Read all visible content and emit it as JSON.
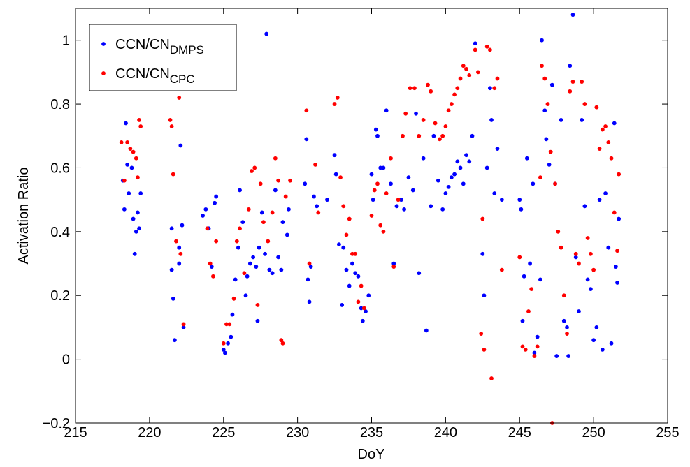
{
  "chart_data": {
    "type": "scatter",
    "x_label": "DoY",
    "y_label": "Activation Ratio",
    "xlim": [
      215,
      255
    ],
    "ylim": [
      -0.2,
      1.1
    ],
    "xticks": [
      215,
      220,
      225,
      230,
      235,
      240,
      245,
      250,
      255
    ],
    "yticks": [
      {
        "value": -0.2,
        "label": "−0.2"
      },
      0,
      0.2,
      0.4,
      0.6,
      0.8,
      1
    ],
    "grid": false,
    "legend": "upper left",
    "series": [
      {
        "name": "CCN/CN",
        "subscript": "DMPS",
        "color": "#0000ff",
        "x": [
          218.2,
          218.3,
          218.4,
          218.5,
          218.6,
          218.8,
          218.9,
          219.0,
          219.1,
          219.2,
          219.3,
          219.4,
          221.5,
          221.5,
          221.6,
          221.7,
          222.0,
          222.0,
          222.1,
          222.2,
          222.3,
          223.6,
          223.8,
          224.0,
          224.2,
          224.4,
          224.5,
          225.0,
          225.1,
          225.3,
          225.5,
          225.6,
          225.8,
          226.0,
          226.1,
          226.3,
          226.5,
          226.6,
          226.8,
          227.0,
          227.2,
          227.3,
          227.4,
          227.6,
          227.8,
          227.9,
          228.1,
          228.3,
          228.5,
          228.7,
          228.9,
          229.0,
          229.3,
          229.4,
          230.5,
          230.6,
          230.7,
          230.8,
          230.9,
          231.1,
          231.3,
          232.0,
          232.5,
          232.6,
          232.8,
          233.0,
          233.1,
          233.3,
          233.5,
          233.7,
          233.9,
          234.1,
          234.3,
          234.4,
          234.6,
          234.8,
          235.0,
          235.1,
          235.3,
          235.4,
          235.6,
          235.8,
          236.0,
          236.3,
          236.5,
          236.7,
          237.0,
          237.2,
          237.5,
          237.8,
          238.0,
          238.2,
          238.5,
          238.7,
          239.0,
          239.2,
          239.5,
          239.8,
          240.0,
          240.2,
          240.4,
          240.6,
          240.8,
          241.0,
          241.2,
          241.4,
          241.6,
          241.8,
          242.0,
          242.5,
          242.6,
          242.8,
          243.0,
          243.1,
          243.3,
          243.5,
          243.8,
          245.0,
          245.1,
          245.2,
          245.3,
          245.5,
          245.7,
          245.9,
          246.0,
          246.2,
          246.4,
          246.5,
          246.7,
          246.8,
          247.0,
          247.2,
          247.4,
          247.5,
          247.8,
          248.0,
          248.2,
          248.3,
          248.4,
          248.6,
          248.8,
          249.0,
          249.2,
          249.4,
          249.6,
          249.8,
          250.0,
          250.2,
          250.4,
          250.6,
          250.8,
          251.0,
          251.2,
          251.4,
          251.5,
          251.6,
          251.7
        ],
        "values": [
          0.56,
          0.47,
          0.74,
          0.61,
          0.52,
          0.6,
          0.44,
          0.33,
          0.4,
          0.46,
          0.41,
          0.52,
          0.41,
          0.28,
          0.19,
          0.06,
          0.35,
          0.3,
          0.67,
          0.42,
          0.1,
          0.45,
          0.47,
          0.41,
          0.29,
          0.49,
          0.51,
          0.03,
          0.02,
          0.05,
          0.07,
          0.14,
          0.25,
          0.35,
          0.53,
          0.43,
          0.2,
          0.26,
          0.3,
          0.32,
          0.29,
          0.12,
          0.35,
          0.46,
          0.33,
          1.02,
          0.28,
          0.27,
          0.53,
          0.32,
          0.28,
          0.43,
          0.39,
          0.47,
          0.55,
          0.69,
          0.25,
          0.18,
          0.29,
          0.51,
          0.48,
          0.5,
          0.64,
          0.58,
          0.36,
          0.17,
          0.35,
          0.28,
          0.23,
          0.3,
          0.27,
          0.26,
          0.16,
          0.12,
          0.15,
          0.2,
          0.58,
          0.5,
          0.72,
          0.7,
          0.6,
          0.6,
          0.78,
          0.55,
          0.3,
          0.48,
          0.5,
          0.47,
          0.57,
          0.53,
          0.77,
          0.27,
          0.63,
          0.09,
          0.48,
          0.7,
          0.56,
          0.47,
          0.52,
          0.54,
          0.57,
          0.58,
          0.62,
          0.6,
          0.55,
          0.64,
          0.62,
          0.7,
          0.99,
          0.33,
          0.2,
          0.6,
          0.85,
          0.75,
          0.52,
          0.66,
          0.5,
          0.5,
          0.47,
          0.12,
          0.26,
          0.63,
          0.3,
          0.55,
          0.02,
          0.07,
          0.25,
          1.0,
          0.78,
          0.69,
          0.61,
          0.86,
          0.55,
          0.01,
          0.75,
          0.12,
          0.1,
          0.01,
          0.92,
          1.08,
          0.32,
          0.15,
          0.75,
          0.48,
          0.25,
          0.22,
          0.06,
          0.1,
          0.5,
          0.03,
          0.52,
          0.35,
          0.05,
          0.74,
          0.29,
          0.24,
          0.44
        ]
      },
      {
        "name": "CCN/CN",
        "subscript": "CPC",
        "color": "#ff0000",
        "x": [
          218.1,
          218.3,
          218.5,
          218.7,
          218.9,
          219.1,
          219.2,
          219.3,
          219.4,
          221.4,
          221.5,
          221.6,
          221.8,
          222.0,
          222.1,
          222.3,
          223.9,
          224.1,
          224.3,
          224.5,
          225.0,
          225.2,
          225.4,
          225.7,
          225.9,
          226.1,
          226.4,
          226.7,
          226.9,
          227.1,
          227.3,
          227.5,
          227.7,
          228.0,
          228.3,
          228.5,
          228.7,
          228.9,
          229.0,
          229.2,
          229.5,
          230.6,
          230.8,
          231.2,
          231.4,
          232.5,
          232.7,
          232.9,
          233.1,
          233.3,
          233.5,
          233.7,
          233.9,
          234.1,
          234.3,
          234.5,
          235.0,
          235.2,
          235.4,
          235.6,
          235.8,
          236.0,
          236.3,
          236.5,
          236.8,
          237.1,
          237.3,
          237.6,
          237.9,
          238.2,
          238.5,
          238.8,
          239.0,
          239.3,
          239.6,
          239.8,
          240.0,
          240.2,
          240.4,
          240.6,
          240.8,
          241.0,
          241.2,
          241.4,
          241.6,
          242.0,
          242.2,
          242.4,
          242.5,
          242.6,
          242.8,
          243.0,
          243.1,
          243.3,
          243.5,
          243.8,
          245.0,
          245.2,
          245.4,
          245.6,
          245.8,
          246.0,
          246.2,
          246.4,
          246.5,
          246.7,
          246.9,
          247.1,
          247.2,
          247.4,
          247.6,
          247.8,
          248.0,
          248.2,
          248.4,
          248.6,
          248.8,
          249.0,
          249.2,
          249.4,
          249.6,
          249.8,
          250.0,
          250.2,
          250.4,
          250.6,
          250.8,
          251.0,
          251.2,
          251.4,
          251.6,
          251.7
        ],
        "values": [
          0.68,
          0.56,
          0.68,
          0.66,
          0.65,
          0.63,
          0.57,
          0.75,
          0.73,
          0.75,
          0.73,
          0.58,
          0.37,
          0.82,
          0.33,
          0.11,
          0.41,
          0.3,
          0.26,
          0.37,
          0.05,
          0.11,
          0.11,
          0.19,
          0.37,
          0.41,
          0.27,
          0.47,
          0.59,
          0.6,
          0.17,
          0.55,
          0.43,
          0.37,
          0.46,
          0.63,
          0.56,
          0.06,
          0.05,
          0.51,
          0.56,
          0.78,
          0.3,
          0.61,
          0.46,
          0.8,
          0.82,
          0.57,
          0.48,
          0.39,
          0.44,
          0.33,
          0.33,
          0.18,
          0.23,
          0.16,
          0.45,
          0.53,
          0.55,
          0.42,
          0.4,
          0.52,
          0.63,
          0.29,
          0.5,
          0.7,
          0.77,
          0.85,
          0.85,
          0.7,
          0.75,
          0.86,
          0.84,
          0.74,
          0.69,
          0.7,
          0.73,
          0.78,
          0.8,
          0.83,
          0.85,
          0.88,
          0.92,
          0.91,
          0.89,
          0.97,
          0.9,
          0.08,
          0.44,
          0.03,
          0.98,
          0.97,
          -0.06,
          0.85,
          0.88,
          0.28,
          0.32,
          0.04,
          0.03,
          0.15,
          0.22,
          0.01,
          0.04,
          0.57,
          0.92,
          0.88,
          0.8,
          0.65,
          -0.2,
          0.55,
          0.4,
          0.35,
          0.2,
          0.08,
          0.84,
          0.87,
          0.33,
          0.3,
          0.87,
          0.8,
          0.38,
          0.33,
          0.28,
          0.79,
          0.66,
          0.72,
          0.73,
          0.68,
          0.63,
          0.46,
          0.34,
          0.58
        ]
      }
    ]
  }
}
